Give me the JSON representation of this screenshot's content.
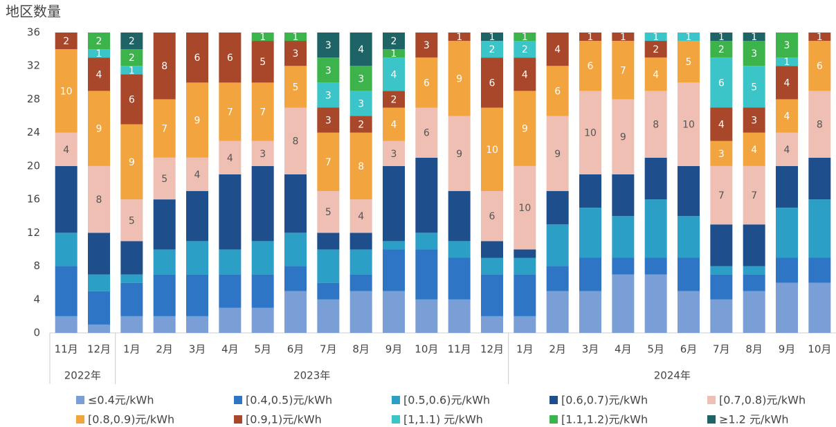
{
  "chart_data": {
    "type": "stacked_bar",
    "y_label": "地区数量",
    "category_groups": [
      {
        "name": "2022年",
        "categories": [
          "11月",
          "12月"
        ]
      },
      {
        "name": "2023年",
        "categories": [
          "1月",
          "2月",
          "3月",
          "4月",
          "5月",
          "6月",
          "7月",
          "8月",
          "9月",
          "10月",
          "11月",
          "12月"
        ]
      },
      {
        "name": "2024年",
        "categories": [
          "1月",
          "2月",
          "3月",
          "4月",
          "5月",
          "6月",
          "7月",
          "8月",
          "9月",
          "10月"
        ]
      }
    ],
    "ylim": [
      0,
      36
    ],
    "yticks": [
      0,
      4,
      8,
      12,
      16,
      20,
      24,
      28,
      32,
      36
    ],
    "grid": false,
    "series": [
      {
        "name": "≤0.4元/kWh",
        "color": "#7a9fd6",
        "values": [
          2,
          1,
          2,
          2,
          2,
          3,
          3,
          5,
          4,
          5,
          5,
          4,
          4,
          2,
          2,
          5,
          5,
          7,
          7,
          5,
          4,
          5,
          6,
          6
        ]
      },
      {
        "name": "[0.4,0.5)元/kWh",
        "color": "#2e75c6",
        "values": [
          6,
          4,
          4,
          5,
          5,
          4,
          4,
          3,
          2,
          2,
          5,
          6,
          5,
          5,
          5,
          3,
          4,
          2,
          2,
          4,
          3,
          2,
          3,
          3
        ]
      },
      {
        "name": "[0.5,0.6)元/kWh",
        "color": "#2b9fc6",
        "values": [
          4,
          2,
          1,
          3,
          4,
          3,
          4,
          4,
          4,
          3,
          1,
          2,
          2,
          2,
          2,
          5,
          6,
          5,
          7,
          5,
          1,
          1,
          6,
          7
        ]
      },
      {
        "name": "[0.6,0.7)元/kWh",
        "color": "#1f4e8c",
        "values": [
          8,
          5,
          4,
          6,
          6,
          9,
          9,
          7,
          2,
          2,
          9,
          9,
          6,
          2,
          1,
          4,
          4,
          5,
          5,
          6,
          5,
          5,
          5,
          5
        ]
      },
      {
        "name": "[0.7,0.8)元/kWh",
        "color": "#eebfb2",
        "values": [
          4,
          8,
          5,
          5,
          4,
          4,
          3,
          8,
          5,
          4,
          3,
          6,
          9,
          6,
          10,
          9,
          10,
          9,
          8,
          10,
          7,
          7,
          4,
          8
        ]
      },
      {
        "name": "[0.8,0.9)元/kWh",
        "color": "#f2a43e",
        "values": [
          10,
          9,
          9,
          7,
          9,
          7,
          7,
          5,
          7,
          8,
          4,
          6,
          9,
          10,
          9,
          6,
          6,
          7,
          4,
          5,
          3,
          4,
          4,
          6
        ]
      },
      {
        "name": "[0.9,1)元/kWh",
        "color": "#a8472a",
        "values": [
          2,
          4,
          6,
          8,
          6,
          6,
          5,
          3,
          3,
          2,
          2,
          3,
          1,
          6,
          4,
          4,
          1,
          1,
          2,
          0,
          4,
          3,
          4,
          1
        ]
      },
      {
        "name": "[1,1.1) 元/kWh",
        "color": "#3cc5c9",
        "values": [
          0,
          1,
          1,
          0,
          0,
          0,
          0,
          0,
          3,
          3,
          4,
          0,
          0,
          2,
          2,
          0,
          0,
          0,
          1,
          1,
          6,
          5,
          1,
          0
        ]
      },
      {
        "name": "[1.1,1.2)元/kWh",
        "color": "#3cb44b",
        "values": [
          0,
          2,
          2,
          0,
          0,
          0,
          1,
          1,
          3,
          3,
          1,
          0,
          0,
          0,
          1,
          0,
          0,
          0,
          0,
          0,
          2,
          3,
          3,
          0
        ]
      },
      {
        "name": "≥1.2 元/kWh",
        "color": "#1e6466",
        "values": [
          0,
          0,
          2,
          0,
          0,
          0,
          0,
          0,
          3,
          4,
          2,
          0,
          0,
          1,
          0,
          0,
          0,
          0,
          0,
          0,
          1,
          1,
          0,
          0
        ]
      }
    ]
  }
}
